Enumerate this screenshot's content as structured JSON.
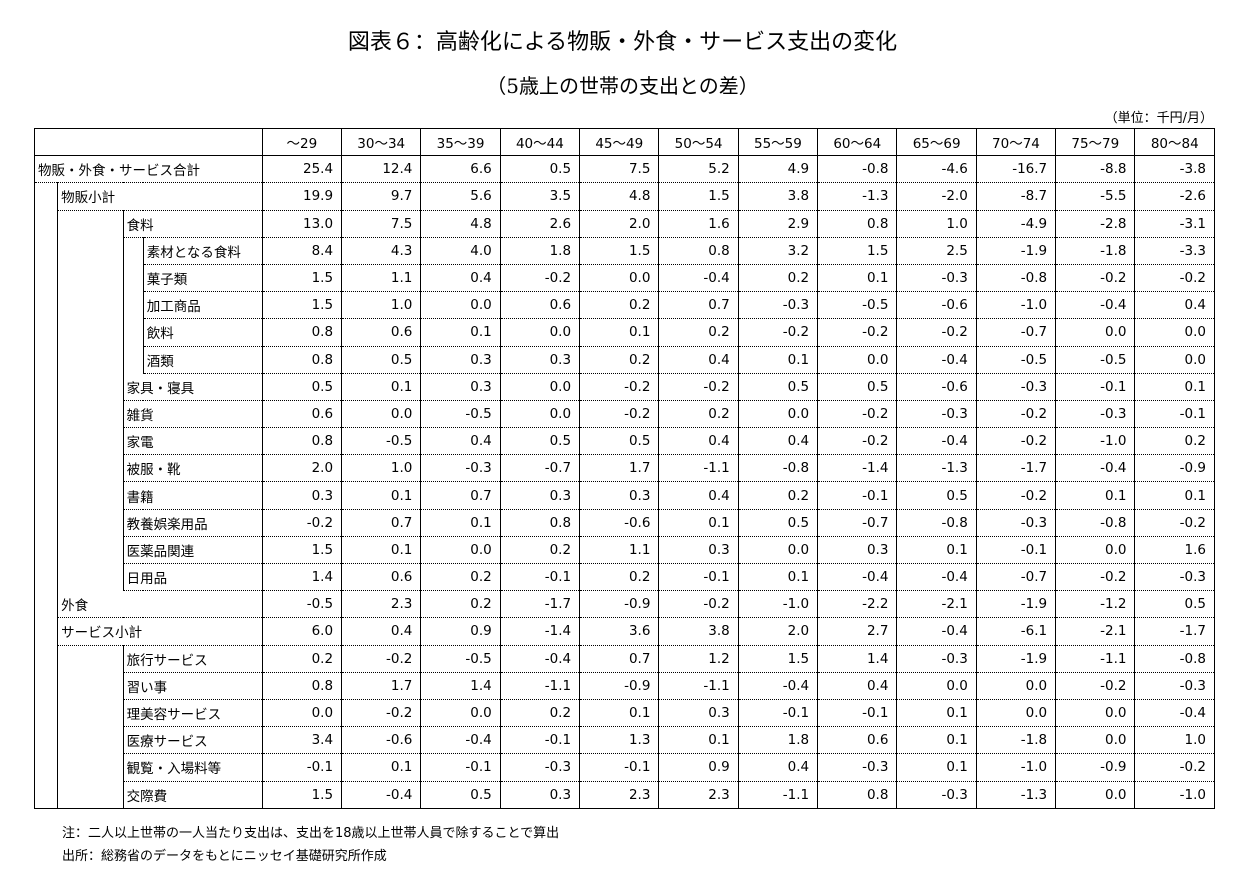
{
  "title": "図表６：高齢化による物販・外食・サービス支出の変化",
  "subtitle": "（5歳上の世帯の支出との差）",
  "unit": "（単位：千円/月）",
  "notes": [
    "注：二人以上世帯の一人当たり支出は、支出を18歳以上世帯人員で除することで算出",
    "出所：総務省のデータをもとにニッセイ基礎研究所作成"
  ],
  "chart_data": {
    "type": "table",
    "columns": [
      "～29",
      "30～34",
      "35～39",
      "40～44",
      "45～49",
      "50～54",
      "55～59",
      "60～64",
      "65～69",
      "70～74",
      "75～79",
      "80～84"
    ],
    "rows": [
      {
        "label": "物販・外食・サービス合計",
        "level": 0,
        "values": [
          "25.4",
          "12.4",
          "6.6",
          "0.5",
          "7.5",
          "5.2",
          "4.9",
          "-0.8",
          "-4.6",
          "-16.7",
          "-8.8",
          "-3.8"
        ]
      },
      {
        "label": "物販小計",
        "level": 1,
        "values": [
          "19.9",
          "9.7",
          "5.6",
          "3.5",
          "4.8",
          "1.5",
          "3.8",
          "-1.3",
          "-2.0",
          "-8.7",
          "-5.5",
          "-2.6"
        ]
      },
      {
        "label": "食料",
        "level": 2,
        "values": [
          "13.0",
          "7.5",
          "4.8",
          "2.6",
          "2.0",
          "1.6",
          "2.9",
          "0.8",
          "1.0",
          "-4.9",
          "-2.8",
          "-3.1"
        ]
      },
      {
        "label": "素材となる食料",
        "level": 3,
        "values": [
          "8.4",
          "4.3",
          "4.0",
          "1.8",
          "1.5",
          "0.8",
          "3.2",
          "1.5",
          "2.5",
          "-1.9",
          "-1.8",
          "-3.3"
        ]
      },
      {
        "label": "菓子類",
        "level": 3,
        "values": [
          "1.5",
          "1.1",
          "0.4",
          "-0.2",
          "0.0",
          "-0.4",
          "0.2",
          "0.1",
          "-0.3",
          "-0.8",
          "-0.2",
          "-0.2"
        ]
      },
      {
        "label": "加工商品",
        "level": 3,
        "values": [
          "1.5",
          "1.0",
          "0.0",
          "0.6",
          "0.2",
          "0.7",
          "-0.3",
          "-0.5",
          "-0.6",
          "-1.0",
          "-0.4",
          "0.4"
        ]
      },
      {
        "label": "飲料",
        "level": 3,
        "values": [
          "0.8",
          "0.6",
          "0.1",
          "0.0",
          "0.1",
          "0.2",
          "-0.2",
          "-0.2",
          "-0.2",
          "-0.7",
          "0.0",
          "0.0"
        ]
      },
      {
        "label": "酒類",
        "level": 3,
        "values": [
          "0.8",
          "0.5",
          "0.3",
          "0.3",
          "0.2",
          "0.4",
          "0.1",
          "0.0",
          "-0.4",
          "-0.5",
          "-0.5",
          "0.0"
        ]
      },
      {
        "label": "家具・寝具",
        "level": 2,
        "values": [
          "0.5",
          "0.1",
          "0.3",
          "0.0",
          "-0.2",
          "-0.2",
          "0.5",
          "0.5",
          "-0.6",
          "-0.3",
          "-0.1",
          "0.1"
        ]
      },
      {
        "label": "雑貨",
        "level": 2,
        "values": [
          "0.6",
          "0.0",
          "-0.5",
          "0.0",
          "-0.2",
          "0.2",
          "0.0",
          "-0.2",
          "-0.3",
          "-0.2",
          "-0.3",
          "-0.1"
        ]
      },
      {
        "label": "家電",
        "level": 2,
        "values": [
          "0.8",
          "-0.5",
          "0.4",
          "0.5",
          "0.5",
          "0.4",
          "0.4",
          "-0.2",
          "-0.4",
          "-0.2",
          "-1.0",
          "0.2"
        ]
      },
      {
        "label": "被服・靴",
        "level": 2,
        "values": [
          "2.0",
          "1.0",
          "-0.3",
          "-0.7",
          "1.7",
          "-1.1",
          "-0.8",
          "-1.4",
          "-1.3",
          "-1.7",
          "-0.4",
          "-0.9"
        ]
      },
      {
        "label": "書籍",
        "level": 2,
        "values": [
          "0.3",
          "0.1",
          "0.7",
          "0.3",
          "0.3",
          "0.4",
          "0.2",
          "-0.1",
          "0.5",
          "-0.2",
          "0.1",
          "0.1"
        ]
      },
      {
        "label": "教養娯楽用品",
        "level": 2,
        "values": [
          "-0.2",
          "0.7",
          "0.1",
          "0.8",
          "-0.6",
          "0.1",
          "0.5",
          "-0.7",
          "-0.8",
          "-0.3",
          "-0.8",
          "-0.2"
        ]
      },
      {
        "label": "医薬品関連",
        "level": 2,
        "values": [
          "1.5",
          "0.1",
          "0.0",
          "0.2",
          "1.1",
          "0.3",
          "0.0",
          "0.3",
          "0.1",
          "-0.1",
          "0.0",
          "1.6"
        ]
      },
      {
        "label": "日用品",
        "level": 2,
        "values": [
          "1.4",
          "0.6",
          "0.2",
          "-0.1",
          "0.2",
          "-0.1",
          "0.1",
          "-0.4",
          "-0.4",
          "-0.7",
          "-0.2",
          "-0.3"
        ]
      },
      {
        "label": "外食",
        "level": 1,
        "values": [
          "-0.5",
          "2.3",
          "0.2",
          "-1.7",
          "-0.9",
          "-0.2",
          "-1.0",
          "-2.2",
          "-2.1",
          "-1.9",
          "-1.2",
          "0.5"
        ]
      },
      {
        "label": "サービス小計",
        "level": 1,
        "values": [
          "6.0",
          "0.4",
          "0.9",
          "-1.4",
          "3.6",
          "3.8",
          "2.0",
          "2.7",
          "-0.4",
          "-6.1",
          "-2.1",
          "-1.7"
        ]
      },
      {
        "label": "旅行サービス",
        "level": 2,
        "values": [
          "0.2",
          "-0.2",
          "-0.5",
          "-0.4",
          "0.7",
          "1.2",
          "1.5",
          "1.4",
          "-0.3",
          "-1.9",
          "-1.1",
          "-0.8"
        ]
      },
      {
        "label": "習い事",
        "level": 2,
        "values": [
          "0.8",
          "1.7",
          "1.4",
          "-1.1",
          "-0.9",
          "-1.1",
          "-0.4",
          "0.4",
          "0.0",
          "0.0",
          "-0.2",
          "-0.3"
        ]
      },
      {
        "label": "理美容サービス",
        "level": 2,
        "values": [
          "0.0",
          "-0.2",
          "0.0",
          "0.2",
          "0.1",
          "0.3",
          "-0.1",
          "-0.1",
          "0.1",
          "0.0",
          "0.0",
          "-0.4"
        ]
      },
      {
        "label": "医療サービス",
        "level": 2,
        "values": [
          "3.4",
          "-0.6",
          "-0.4",
          "-0.1",
          "1.3",
          "0.1",
          "1.8",
          "0.6",
          "0.1",
          "-1.8",
          "0.0",
          "1.0"
        ]
      },
      {
        "label": "観覧・入場料等",
        "level": 2,
        "values": [
          "-0.1",
          "0.1",
          "-0.1",
          "-0.3",
          "-0.1",
          "0.9",
          "0.4",
          "-0.3",
          "0.1",
          "-1.0",
          "-0.9",
          "-0.2"
        ]
      },
      {
        "label": "交際費",
        "level": 2,
        "values": [
          "1.5",
          "-0.4",
          "0.5",
          "0.3",
          "2.3",
          "2.3",
          "-1.1",
          "0.8",
          "-0.3",
          "-1.3",
          "0.0",
          "-1.0"
        ]
      }
    ]
  }
}
